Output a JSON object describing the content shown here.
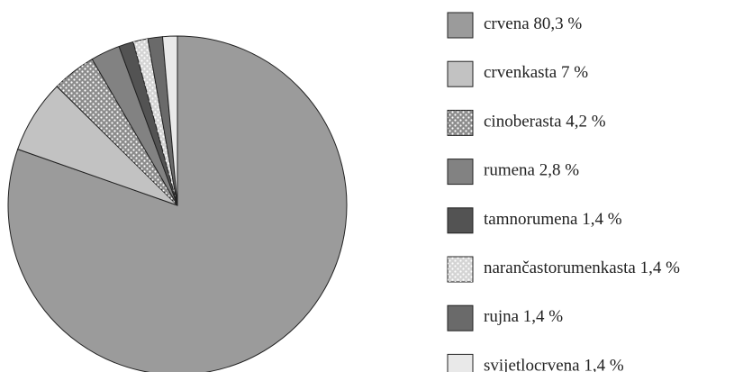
{
  "chart_data": {
    "type": "pie",
    "categories": [
      "crvena",
      "crvenkasta",
      "cinoberasta",
      "rumena",
      "tamnorumena",
      "narančastorumenkasta",
      "rujna",
      "svijetlocrvena"
    ],
    "values": [
      80.3,
      7,
      4.2,
      2.8,
      1.4,
      1.4,
      1.4,
      1.4
    ],
    "value_labels": [
      "80,3 %",
      "7 %",
      "4,2 %",
      "2,8 %",
      "1,4 %",
      "1,4 %",
      "1,4 %",
      "1,4 %"
    ],
    "colors": [
      "#9b9b9b",
      "#c2c2c2",
      "#8c8c8c",
      "#828282",
      "#535353",
      "#d4d4d4",
      "#6a6a6a",
      "#e9e9e9"
    ],
    "patterns": [
      "solid",
      "solid",
      "dots",
      "solid",
      "solid",
      "dots",
      "solid",
      "solid"
    ],
    "legend": "right"
  }
}
